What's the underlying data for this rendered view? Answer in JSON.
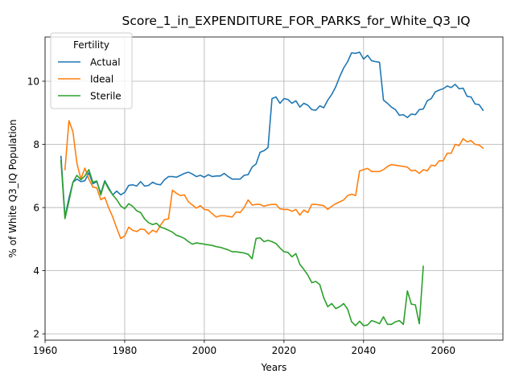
{
  "chart_data": {
    "type": "line",
    "title": "Score_1_in_EXPENDITURE_FOR_PARKS_for_White_Q3_IQ",
    "xlabel": "Years",
    "ylabel": "% of White Q3_IQ Population",
    "xlim": [
      1960,
      2075
    ],
    "ylim": [
      1.8,
      11.4
    ],
    "xticks": [
      1960,
      1980,
      2000,
      2020,
      2040,
      2060
    ],
    "yticks": [
      2,
      4,
      6,
      8,
      10
    ],
    "grid": true,
    "legend": {
      "title": "Fertility",
      "placement": "top-left"
    },
    "series": [
      {
        "name": "Actual",
        "color": "#1f77b4",
        "x": [
          1964,
          1965,
          1966,
          1967,
          1968,
          1969,
          1970,
          1971,
          1972,
          1973,
          1974,
          1975,
          1976,
          1977,
          1978,
          1979,
          1980,
          1981,
          1982,
          1983,
          1984,
          1985,
          1986,
          1987,
          1988,
          1989,
          1990,
          1991,
          1992,
          1993,
          1994,
          1995,
          1996,
          1997,
          1998,
          1999,
          2000,
          2001,
          2002,
          2003,
          2004,
          2005,
          2006,
          2007,
          2008,
          2009,
          2010,
          2011,
          2012,
          2013,
          2014,
          2015,
          2016,
          2017,
          2018,
          2019,
          2020,
          2021,
          2022,
          2023,
          2024,
          2025,
          2026,
          2027,
          2028,
          2029,
          2030,
          2031,
          2032,
          2033,
          2034,
          2035,
          2036,
          2037,
          2038,
          2039,
          2040,
          2041,
          2042,
          2043,
          2044,
          2045,
          2046,
          2047,
          2048,
          2049,
          2050,
          2051,
          2052,
          2053,
          2054,
          2055,
          2056,
          2057,
          2058,
          2059,
          2060,
          2061,
          2062,
          2063,
          2064,
          2065,
          2066,
          2067,
          2068,
          2069,
          2070
        ],
        "values": [
          7.62,
          5.7,
          6.3,
          6.8,
          6.9,
          6.82,
          6.85,
          7.1,
          6.75,
          6.82,
          6.45,
          6.85,
          6.62,
          6.4,
          6.52,
          6.4,
          6.48,
          6.7,
          6.72,
          6.68,
          6.82,
          6.68,
          6.7,
          6.8,
          6.74,
          6.72,
          6.88,
          6.98,
          6.98,
          6.96,
          7.02,
          7.08,
          7.12,
          7.06,
          6.98,
          7.02,
          6.96,
          7.04,
          6.98,
          7.0,
          7.0,
          7.08,
          6.98,
          6.9,
          6.9,
          6.9,
          7.02,
          7.04,
          7.28,
          7.38,
          7.75,
          7.8,
          7.9,
          9.45,
          9.5,
          9.3,
          9.45,
          9.42,
          9.3,
          9.38,
          9.18,
          9.3,
          9.24,
          9.1,
          9.08,
          9.22,
          9.16,
          9.4,
          9.58,
          9.82,
          10.14,
          10.42,
          10.62,
          10.9,
          10.88,
          10.92,
          10.7,
          10.82,
          10.65,
          10.62,
          10.6,
          9.4,
          9.3,
          9.18,
          9.1,
          8.92,
          8.94,
          8.85,
          8.96,
          8.94,
          9.1,
          9.12,
          9.38,
          9.45,
          9.66,
          9.72,
          9.76,
          9.85,
          9.8,
          9.9,
          9.76,
          9.78,
          9.52,
          9.5,
          9.28,
          9.26,
          9.08
        ]
      },
      {
        "name": "Ideal",
        "color": "#ff7f0e",
        "x": [
          1965,
          1966,
          1967,
          1968,
          1969,
          1970,
          1971,
          1972,
          1973,
          1974,
          1975,
          1976,
          1977,
          1978,
          1979,
          1980,
          1981,
          1982,
          1983,
          1984,
          1985,
          1986,
          1987,
          1988,
          1989,
          1990,
          1991,
          1992,
          1993,
          1994,
          1995,
          1996,
          1997,
          1998,
          1999,
          2000,
          2001,
          2002,
          2003,
          2004,
          2005,
          2006,
          2007,
          2008,
          2009,
          2010,
          2011,
          2012,
          2013,
          2014,
          2015,
          2016,
          2017,
          2018,
          2019,
          2020,
          2021,
          2022,
          2023,
          2024,
          2025,
          2026,
          2027,
          2028,
          2029,
          2030,
          2031,
          2032,
          2033,
          2034,
          2035,
          2036,
          2037,
          2038,
          2039,
          2040,
          2041,
          2042,
          2043,
          2044,
          2045,
          2046,
          2047,
          2048,
          2049,
          2050,
          2051,
          2052,
          2053,
          2054,
          2055,
          2056,
          2057,
          2058,
          2059,
          2060,
          2061,
          2062,
          2063,
          2064,
          2065,
          2066,
          2067,
          2068,
          2069,
          2070
        ],
        "values": [
          7.2,
          8.75,
          8.4,
          7.4,
          6.9,
          7.25,
          6.9,
          6.65,
          6.62,
          6.25,
          6.32,
          5.98,
          5.7,
          5.35,
          5.02,
          5.1,
          5.38,
          5.28,
          5.24,
          5.32,
          5.3,
          5.16,
          5.28,
          5.22,
          5.44,
          5.62,
          5.64,
          6.55,
          6.45,
          6.38,
          6.4,
          6.18,
          6.08,
          5.98,
          6.06,
          5.94,
          5.92,
          5.8,
          5.7,
          5.74,
          5.74,
          5.72,
          5.7,
          5.86,
          5.84,
          6.0,
          6.24,
          6.08,
          6.1,
          6.1,
          6.04,
          6.08,
          6.1,
          6.1,
          5.96,
          5.94,
          5.94,
          5.88,
          5.94,
          5.76,
          5.92,
          5.84,
          6.1,
          6.1,
          6.08,
          6.06,
          5.94,
          6.04,
          6.12,
          6.18,
          6.24,
          6.38,
          6.42,
          6.38,
          7.16,
          7.2,
          7.24,
          7.14,
          7.14,
          7.14,
          7.2,
          7.3,
          7.36,
          7.34,
          7.32,
          7.3,
          7.28,
          7.16,
          7.18,
          7.08,
          7.2,
          7.16,
          7.34,
          7.32,
          7.48,
          7.48,
          7.72,
          7.72,
          8.0,
          7.96,
          8.18,
          8.08,
          8.12,
          8.0,
          7.98,
          7.88
        ]
      },
      {
        "name": "Sterile",
        "color": "#2ca02c",
        "x": [
          1964,
          1965,
          1966,
          1967,
          1968,
          1969,
          1970,
          1971,
          1972,
          1973,
          1974,
          1975,
          1976,
          1977,
          1978,
          1979,
          1980,
          1981,
          1982,
          1983,
          1984,
          1985,
          1986,
          1987,
          1988,
          1989,
          1990,
          1991,
          1992,
          1993,
          1994,
          1995,
          1996,
          1997,
          1998,
          1999,
          2000,
          2001,
          2002,
          2003,
          2004,
          2005,
          2006,
          2007,
          2008,
          2009,
          2010,
          2011,
          2012,
          2013,
          2014,
          2015,
          2016,
          2017,
          2018,
          2019,
          2020,
          2021,
          2022,
          2023,
          2024,
          2025,
          2026,
          2027,
          2028,
          2029,
          2030,
          2031,
          2032,
          2033,
          2034,
          2035,
          2036,
          2037,
          2038,
          2039,
          2040,
          2041,
          2042,
          2043,
          2044,
          2045,
          2046,
          2047,
          2048,
          2049,
          2050,
          2051,
          2052,
          2053,
          2054,
          2055
        ],
        "values": [
          7.48,
          5.65,
          6.2,
          6.8,
          7.02,
          6.88,
          7.0,
          7.2,
          6.8,
          6.84,
          6.4,
          6.82,
          6.58,
          6.4,
          6.25,
          6.05,
          5.96,
          6.12,
          6.04,
          5.9,
          5.84,
          5.64,
          5.52,
          5.46,
          5.5,
          5.38,
          5.34,
          5.28,
          5.22,
          5.12,
          5.08,
          5.02,
          4.92,
          4.84,
          4.88,
          4.86,
          4.84,
          4.82,
          4.8,
          4.76,
          4.74,
          4.7,
          4.66,
          4.6,
          4.6,
          4.58,
          4.56,
          4.52,
          4.38,
          5.02,
          5.04,
          4.92,
          4.96,
          4.92,
          4.86,
          4.72,
          4.6,
          4.58,
          4.44,
          4.54,
          4.2,
          4.04,
          3.86,
          3.62,
          3.66,
          3.56,
          3.14,
          2.86,
          2.96,
          2.8,
          2.86,
          2.96,
          2.78,
          2.38,
          2.26,
          2.4,
          2.26,
          2.28,
          2.42,
          2.38,
          2.32,
          2.54,
          2.3,
          2.3,
          2.38,
          2.42,
          2.3,
          3.36,
          2.94,
          2.92,
          2.32,
          4.14
        ]
      }
    ]
  }
}
